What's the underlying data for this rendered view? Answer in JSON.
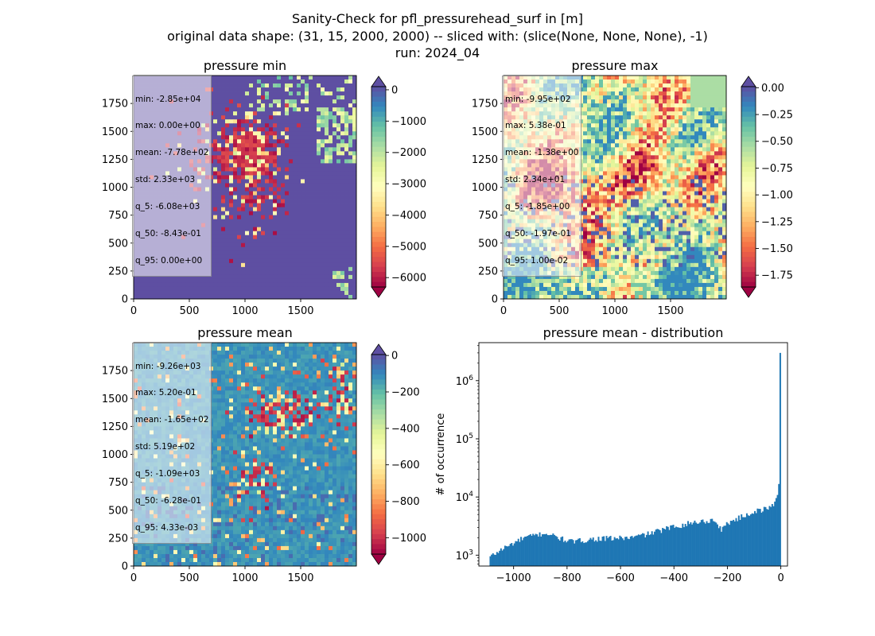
{
  "suptitle": {
    "line1": "Sanity-Check for pfl_pressurehead_surf in [m]",
    "line2": "original data shape: (31, 15, 2000, 2000) -- sliced with: (slice(None, None, None), -1)",
    "line3": "run: 2024_04"
  },
  "colors": {
    "hist_bar": "#1f77b4",
    "spectral": [
      "#9e0142",
      "#d53e4f",
      "#f46d43",
      "#fdae61",
      "#fee08b",
      "#ffffbf",
      "#e6f598",
      "#abdda4",
      "#66c2a5",
      "#3288bd",
      "#5e4fa2"
    ]
  },
  "chart_data": [
    {
      "type": "heatmap",
      "title": "pressure min",
      "x_ticks": [
        "0",
        "500",
        "1000",
        "1500"
      ],
      "y_ticks": [
        "0",
        "250",
        "500",
        "750",
        "1000",
        "1250",
        "1500",
        "1750"
      ],
      "xlim": [
        0,
        2000
      ],
      "ylim": [
        0,
        2000
      ],
      "colorbar": {
        "ticks": [
          "0",
          "−1000",
          "−2000",
          "−3000",
          "−4000",
          "−5000",
          "−6000"
        ],
        "range": [
          -6300,
          100
        ],
        "extend": "both"
      },
      "stats": [
        "min: -2.85e+04",
        "max: 0.00e+00",
        "mean: -7.78e+02",
        "std: 2.33e+03",
        "q_5: -6.08e+03",
        "q_50: -8.43e-01",
        "q_95: 0.00e+00"
      ]
    },
    {
      "type": "heatmap",
      "title": "pressure max",
      "x_ticks": [
        "0",
        "500",
        "1000",
        "1500"
      ],
      "y_ticks": [
        "0",
        "250",
        "500",
        "750",
        "1000",
        "1250",
        "1500",
        "1750"
      ],
      "xlim": [
        0,
        2000
      ],
      "ylim": [
        0,
        2000
      ],
      "colorbar": {
        "ticks": [
          "0.00",
          "−0.25",
          "−0.50",
          "−0.75",
          "−1.00",
          "−1.25",
          "−1.50",
          "−1.75"
        ],
        "range": [
          -1.86,
          0.01
        ],
        "extend": "both"
      },
      "stats": [
        "min: -9.95e+02",
        "max: 5.38e-01",
        "mean: -1.38e+00",
        "std: 2.34e+01",
        "q_5: -1.85e+00",
        "q_50: -1.97e-01",
        "q_95: 1.00e-02"
      ]
    },
    {
      "type": "heatmap",
      "title": "pressure mean",
      "x_ticks": [
        "0",
        "500",
        "1000",
        "1500"
      ],
      "y_ticks": [
        "0",
        "250",
        "500",
        "750",
        "1000",
        "1250",
        "1500",
        "1750"
      ],
      "xlim": [
        0,
        2000
      ],
      "ylim": [
        0,
        2000
      ],
      "colorbar": {
        "ticks": [
          "0",
          "−200",
          "−400",
          "−600",
          "−800",
          "−1000"
        ],
        "range": [
          -1090,
          5
        ],
        "extend": "both"
      },
      "stats": [
        "min: -9.26e+03",
        "max: 5.20e-01",
        "mean: -1.65e+02",
        "std: 5.19e+02",
        "q_5: -1.09e+03",
        "q_50: -6.28e-01",
        "q_95: 4.33e-03"
      ]
    },
    {
      "type": "bar",
      "title": "pressure mean - distribution",
      "ylabel": "# of occurrence",
      "xlabel": "",
      "yscale": "log",
      "x_ticks": [
        "−1000",
        "−800",
        "−600",
        "−400",
        "−200",
        "0"
      ],
      "y_ticks": [
        "10^3",
        "10^4",
        "10^5",
        "10^6"
      ],
      "xlim": [
        -1130,
        25
      ],
      "ylim": [
        650,
        4500000
      ],
      "knots": [
        [
          -1085,
          950
        ],
        [
          -1040,
          1300
        ],
        [
          -960,
          2000
        ],
        [
          -880,
          2400
        ],
        [
          -820,
          1900
        ],
        [
          -780,
          1700
        ],
        [
          -700,
          1900
        ],
        [
          -560,
          2000
        ],
        [
          -500,
          2300
        ],
        [
          -400,
          3100
        ],
        [
          -320,
          3700
        ],
        [
          -250,
          4000
        ],
        [
          -220,
          2700
        ],
        [
          -200,
          3600
        ],
        [
          -100,
          5600
        ],
        [
          -40,
          6500
        ],
        [
          -20,
          8500
        ],
        [
          -10,
          12000
        ],
        [
          -5,
          28000
        ],
        [
          0,
          3000000
        ]
      ]
    }
  ]
}
